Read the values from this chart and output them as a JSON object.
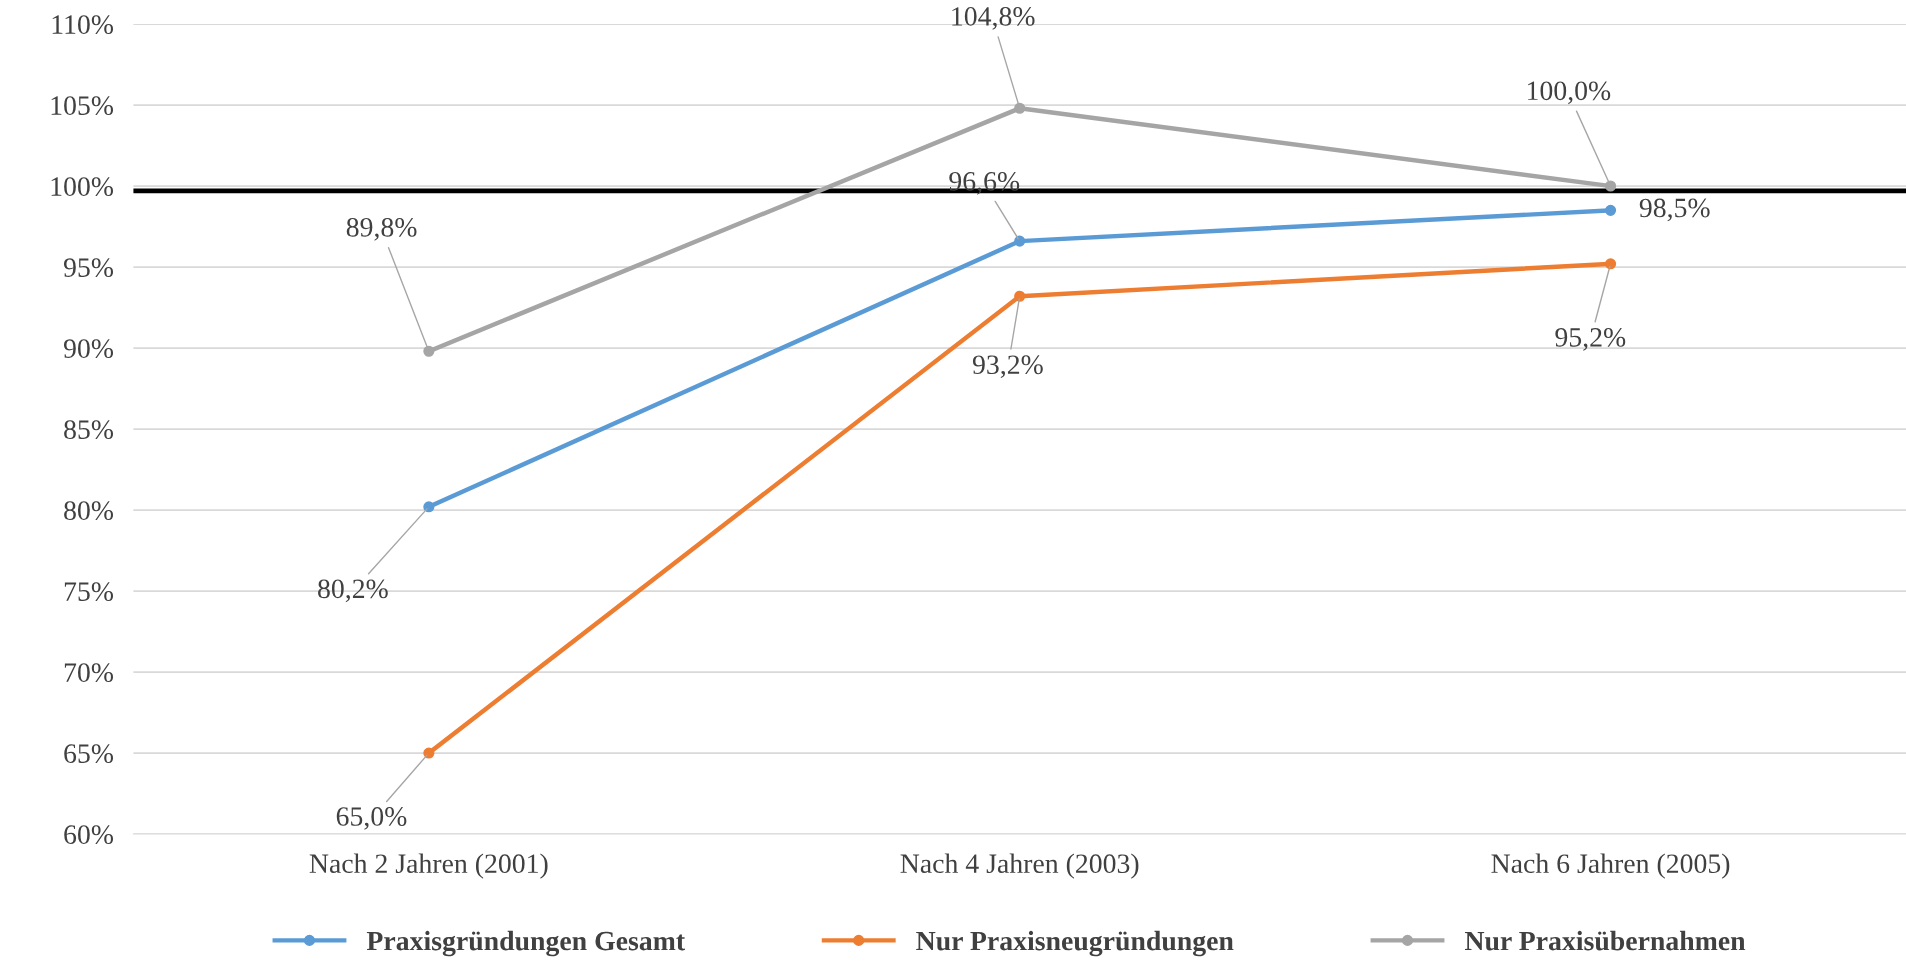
{
  "chart_data": {
    "type": "line",
    "categories": [
      "Nach 2 Jahren (2001)",
      "Nach 4 Jahren (2003)",
      "Nach 6 Jahren (2005)"
    ],
    "series": [
      {
        "name": "Praxisgründungen Gesamt",
        "color": "#5b9bd5",
        "values": [
          80.2,
          96.6,
          98.5
        ],
        "value_labels": [
          "80,2%",
          "96,6%",
          "98,5%"
        ]
      },
      {
        "name": "Nur Praxisneugründungen",
        "color": "#ed7d31",
        "values": [
          65.0,
          93.2,
          95.2
        ],
        "value_labels": [
          "65,0%",
          "93,2%",
          "95,2%"
        ]
      },
      {
        "name": "Nur Praxisübernahmen",
        "color": "#a5a5a5",
        "values": [
          89.8,
          104.8,
          100.0
        ],
        "value_labels": [
          "89,8%",
          "104,8%",
          "100,0%"
        ]
      }
    ],
    "ylim": [
      60,
      110
    ],
    "yticks": [
      {
        "value": 60,
        "label": "60%"
      },
      {
        "value": 65,
        "label": "65%"
      },
      {
        "value": 70,
        "label": "70%"
      },
      {
        "value": 75,
        "label": "75%"
      },
      {
        "value": 80,
        "label": "80%"
      },
      {
        "value": 85,
        "label": "85%"
      },
      {
        "value": 90,
        "label": "90%"
      },
      {
        "value": 95,
        "label": "95%"
      },
      {
        "value": 100,
        "label": "100%"
      },
      {
        "value": 105,
        "label": "105%"
      },
      {
        "value": 110,
        "label": "110%"
      }
    ],
    "ref_lines": [
      {
        "axis": "y",
        "value": 99.7,
        "color": "#000000"
      }
    ],
    "grid": "y",
    "legend": "bottom",
    "marker": "circle",
    "line_style": "solid"
  }
}
